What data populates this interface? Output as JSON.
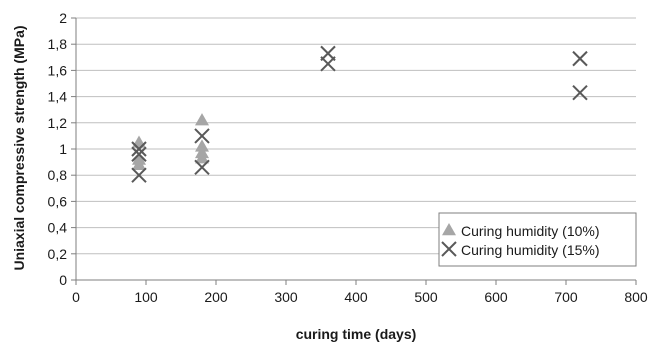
{
  "chart_data": {
    "type": "scatter",
    "xlabel": "curing time (days)",
    "ylabel": "Uniaxial compressive strength (MPa)",
    "xlim": [
      0,
      800
    ],
    "ylim": [
      0,
      2
    ],
    "x_ticks": [
      0,
      100,
      200,
      300,
      400,
      500,
      600,
      700,
      800
    ],
    "x_tick_labels": [
      "0",
      "100",
      "200",
      "300",
      "400",
      "500",
      "600",
      "700",
      "800"
    ],
    "y_ticks": [
      0,
      0.2,
      0.4,
      0.6,
      0.8,
      1.0,
      1.2,
      1.4,
      1.6,
      1.8,
      2.0
    ],
    "y_tick_labels": [
      "0",
      "0,2",
      "0,4",
      "0,6",
      "0,8",
      "1",
      "1,2",
      "1,4",
      "1,6",
      "1,8",
      "2"
    ],
    "grid": "horizontal",
    "legend_position": "bottom-right",
    "series": [
      {
        "name": "Curing humidity (10%)",
        "marker": "triangle",
        "color": "#a6a6a6",
        "points": [
          [
            90,
            1.05
          ],
          [
            90,
            0.92
          ],
          [
            90,
            0.88
          ],
          [
            180,
            1.22
          ],
          [
            180,
            1.02
          ],
          [
            180,
            0.97
          ],
          [
            180,
            0.93
          ]
        ]
      },
      {
        "name": "Curing humidity (15%)",
        "marker": "x",
        "color": "#595959",
        "points": [
          [
            90,
            1.0
          ],
          [
            90,
            0.96
          ],
          [
            90,
            0.8
          ],
          [
            180,
            1.1
          ],
          [
            180,
            0.86
          ],
          [
            360,
            1.73
          ],
          [
            360,
            1.65
          ],
          [
            720,
            1.69
          ],
          [
            720,
            1.43
          ]
        ]
      }
    ]
  }
}
